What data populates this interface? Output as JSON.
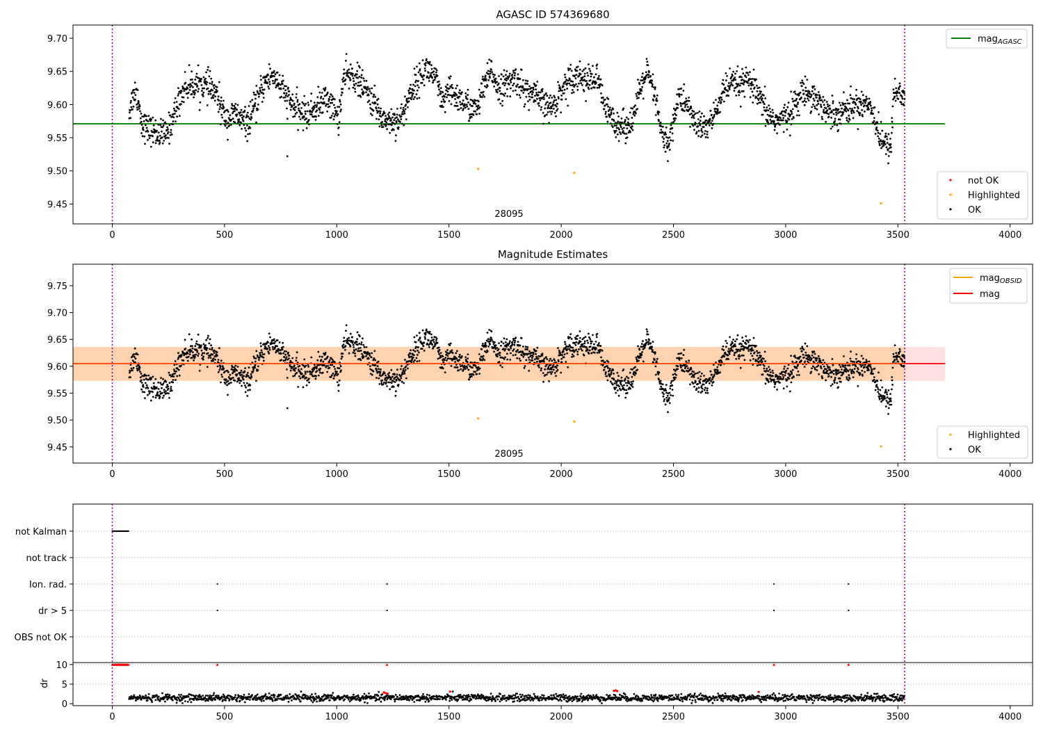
{
  "chart_data": [
    {
      "type": "scatter",
      "title": "AGASC ID 574369680",
      "annotation": "28095",
      "xlim": [
        -175,
        4100
      ],
      "ylim": [
        9.42,
        9.72
      ],
      "xticks": [
        "0",
        "500",
        "1000",
        "1500",
        "2000",
        "2500",
        "3000",
        "3500",
        "4000"
      ],
      "yticks": [
        "9.45",
        "9.50",
        "9.55",
        "9.60",
        "9.65",
        "9.70"
      ],
      "vlines": [
        0,
        3530
      ],
      "lines": [
        {
          "name": "mag",
          "subscript": "AGASC",
          "y": 9.571,
          "x": [
            -175,
            3710
          ],
          "color": "#008000"
        }
      ],
      "legend_lines_placement": "top-right",
      "legend_points_placement": "bottom-right",
      "point_legend": [
        {
          "name": "not OK",
          "color": "#ff0000"
        },
        {
          "name": "Highlighted",
          "color": "#ffa500"
        },
        {
          "name": "OK",
          "color": "#000000"
        }
      ],
      "ok_range": [
        75,
        3530
      ],
      "highlighted": [
        {
          "x": 1630,
          "y": 9.503
        },
        {
          "x": 2058,
          "y": 9.497
        },
        {
          "x": 3425,
          "y": 9.451
        }
      ],
      "outliers": [
        {
          "x": 780,
          "y": 9.522
        }
      ],
      "profile": [
        [
          75,
          9.59
        ],
        [
          100,
          9.62
        ],
        [
          115,
          9.61
        ],
        [
          130,
          9.575
        ],
        [
          150,
          9.565
        ],
        [
          180,
          9.56
        ],
        [
          210,
          9.555
        ],
        [
          240,
          9.555
        ],
        [
          260,
          9.57
        ],
        [
          290,
          9.6
        ],
        [
          320,
          9.625
        ],
        [
          360,
          9.63
        ],
        [
          400,
          9.63
        ],
        [
          440,
          9.625
        ],
        [
          470,
          9.61
        ],
        [
          490,
          9.59
        ],
        [
          510,
          9.578
        ],
        [
          550,
          9.585
        ],
        [
          600,
          9.57
        ],
        [
          640,
          9.6
        ],
        [
          680,
          9.635
        ],
        [
          720,
          9.645
        ],
        [
          760,
          9.62
        ],
        [
          800,
          9.6
        ],
        [
          830,
          9.59
        ],
        [
          870,
          9.585
        ],
        [
          920,
          9.6
        ],
        [
          960,
          9.61
        ],
        [
          990,
          9.59
        ],
        [
          1010,
          9.58
        ],
        [
          1030,
          9.64
        ],
        [
          1070,
          9.645
        ],
        [
          1100,
          9.635
        ],
        [
          1130,
          9.62
        ],
        [
          1170,
          9.6
        ],
        [
          1200,
          9.58
        ],
        [
          1250,
          9.575
        ],
        [
          1290,
          9.58
        ],
        [
          1330,
          9.62
        ],
        [
          1370,
          9.64
        ],
        [
          1400,
          9.655
        ],
        [
          1440,
          9.64
        ],
        [
          1470,
          9.6
        ],
        [
          1500,
          9.62
        ],
        [
          1540,
          9.61
        ],
        [
          1580,
          9.6
        ],
        [
          1620,
          9.59
        ],
        [
          1660,
          9.63
        ],
        [
          1690,
          9.65
        ],
        [
          1720,
          9.625
        ],
        [
          1760,
          9.63
        ],
        [
          1800,
          9.64
        ],
        [
          1840,
          9.62
        ],
        [
          1880,
          9.615
        ],
        [
          1920,
          9.6
        ],
        [
          1960,
          9.595
        ],
        [
          2000,
          9.62
        ],
        [
          2040,
          9.64
        ],
        [
          2080,
          9.645
        ],
        [
          2120,
          9.635
        ],
        [
          2160,
          9.64
        ],
        [
          2200,
          9.59
        ],
        [
          2240,
          9.575
        ],
        [
          2280,
          9.565
        ],
        [
          2320,
          9.58
        ],
        [
          2360,
          9.63
        ],
        [
          2380,
          9.65
        ],
        [
          2420,
          9.61
        ],
        [
          2450,
          9.55
        ],
        [
          2480,
          9.54
        ],
        [
          2520,
          9.61
        ],
        [
          2560,
          9.6
        ],
        [
          2600,
          9.57
        ],
        [
          2640,
          9.565
        ],
        [
          2680,
          9.58
        ],
        [
          2720,
          9.62
        ],
        [
          2760,
          9.63
        ],
        [
          2800,
          9.63
        ],
        [
          2840,
          9.635
        ],
        [
          2880,
          9.61
        ],
        [
          2920,
          9.585
        ],
        [
          2960,
          9.575
        ],
        [
          3000,
          9.58
        ],
        [
          3040,
          9.6
        ],
        [
          3080,
          9.62
        ],
        [
          3120,
          9.615
        ],
        [
          3160,
          9.6
        ],
        [
          3200,
          9.585
        ],
        [
          3240,
          9.59
        ],
        [
          3280,
          9.595
        ],
        [
          3320,
          9.6
        ],
        [
          3360,
          9.605
        ],
        [
          3390,
          9.59
        ],
        [
          3420,
          9.55
        ],
        [
          3450,
          9.535
        ],
        [
          3470,
          9.54
        ],
        [
          3480,
          9.62
        ],
        [
          3510,
          9.615
        ],
        [
          3530,
          9.615
        ]
      ]
    },
    {
      "type": "scatter",
      "title": "Magnitude Estimates",
      "annotation": "28095",
      "xlim": [
        -175,
        4100
      ],
      "ylim": [
        9.42,
        9.79
      ],
      "xticks": [
        "0",
        "500",
        "1000",
        "1500",
        "2000",
        "2500",
        "3000",
        "3500",
        "4000"
      ],
      "yticks": [
        "9.45",
        "9.50",
        "9.55",
        "9.60",
        "9.65",
        "9.70",
        "9.75"
      ],
      "vlines": [
        0,
        3530
      ],
      "lines": [
        {
          "name": "mag",
          "subscript": "OBSID",
          "y": 9.605,
          "x": [
            -175,
            3710
          ],
          "color": "#ffa500",
          "band": [
            9.573,
            9.636
          ]
        },
        {
          "name": "mag",
          "subscript": "",
          "y": 9.605,
          "x": [
            -175,
            3710
          ],
          "color": "#ff0000",
          "band": [
            9.573,
            9.636
          ]
        }
      ],
      "legend_lines_placement": "top-right",
      "legend_points_placement": "bottom-right",
      "point_legend": [
        {
          "name": "Highlighted",
          "color": "#ffa500"
        },
        {
          "name": "OK",
          "color": "#000000"
        }
      ]
    },
    {
      "type": "scatter",
      "title": "",
      "categories": [
        "not Kalman",
        "not track",
        "Ion. rad.",
        "dr > 5",
        "OBS not OK"
      ],
      "xlim": [
        -175,
        4100
      ],
      "vlines": [
        0,
        3530
      ],
      "flags": {
        "not Kalman": [
          [
            0,
            75
          ]
        ],
        "not track": [],
        "Ion. rad.": [
          [
            468,
            468
          ],
          [
            1224,
            1224
          ],
          [
            2948,
            2948
          ],
          [
            3280,
            3280
          ]
        ],
        "dr > 5": [
          [
            468,
            468
          ],
          [
            1224,
            1224
          ],
          [
            2948,
            2948
          ],
          [
            3280,
            3280
          ]
        ],
        "OBS not OK": []
      }
    },
    {
      "type": "scatter",
      "title": "",
      "ylabel": "dr",
      "xlim": [
        -175,
        4100
      ],
      "ylim": [
        -0.5,
        10.5
      ],
      "xticks": [
        "0",
        "500",
        "1000",
        "1500",
        "2000",
        "2500",
        "3000",
        "3500",
        "4000"
      ],
      "yticks": [
        "0",
        "5",
        "10"
      ],
      "vlines": [
        0,
        3530
      ],
      "dr_range": [
        75,
        3530
      ],
      "dr_level": 1.5,
      "capped_value": 10,
      "capped_x": [
        [
          0,
          75
        ],
        [
          468,
          468
        ],
        [
          1224,
          1224
        ],
        [
          2948,
          2948
        ],
        [
          3280,
          3280
        ]
      ],
      "high_dr": [
        {
          "x": 1210,
          "y": 2.9
        },
        {
          "x": 1218,
          "y": 2.7
        },
        {
          "x": 1226,
          "y": 2.6
        },
        {
          "x": 1505,
          "y": 3.1
        },
        {
          "x": 2235,
          "y": 3.3
        },
        {
          "x": 2242,
          "y": 3.4
        },
        {
          "x": 2250,
          "y": 3.2
        },
        {
          "x": 2880,
          "y": 3.0
        }
      ]
    }
  ]
}
